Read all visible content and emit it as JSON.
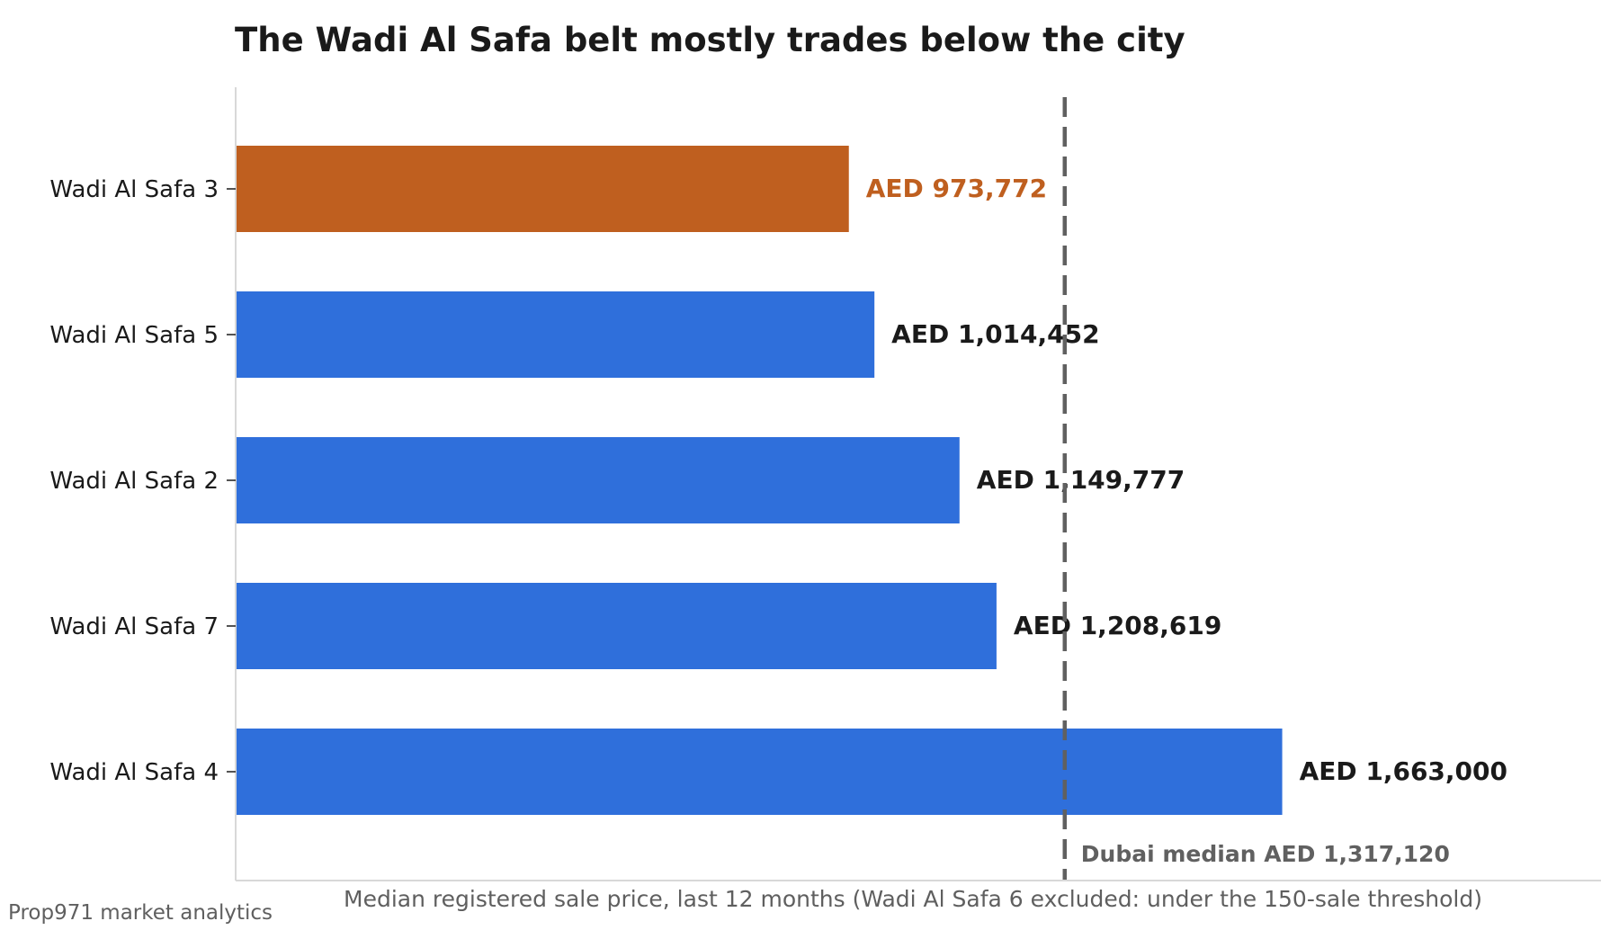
{
  "chart_data": {
    "type": "bar",
    "orientation": "horizontal",
    "title": "The Wadi Al Safa belt mostly trades below the city",
    "xlabel": "Median registered sale price, last 12 months (Wadi Al Safa 6 excluded: under the 150-sale threshold)",
    "ylabel": "",
    "categories": [
      "Wadi Al Safa 3",
      "Wadi Al Safa 5",
      "Wadi Al Safa 2",
      "Wadi Al Safa 7",
      "Wadi Al Safa 4"
    ],
    "values": [
      973772,
      1014452,
      1149777,
      1208619,
      1663000
    ],
    "value_labels": [
      "AED 973,772",
      "AED 1,014,452",
      "AED 1,149,777",
      "AED 1,208,619",
      "AED 1,663,000"
    ],
    "highlight_category": "Wadi Al Safa 3",
    "xlim": [
      0,
      2170000
    ],
    "grid": false,
    "reference_line": {
      "value": 1317120,
      "label": "Dubai median AED 1,317,120",
      "style": "dashed"
    },
    "colors": {
      "bar": "#2f6fdb",
      "highlight": "#bf5f1f",
      "reference": "#606060",
      "text": "#1a1a1a",
      "muted": "#5f5f5f",
      "axis": "#d8d8d8"
    }
  },
  "footer": {
    "source": "Prop971 market analytics"
  }
}
